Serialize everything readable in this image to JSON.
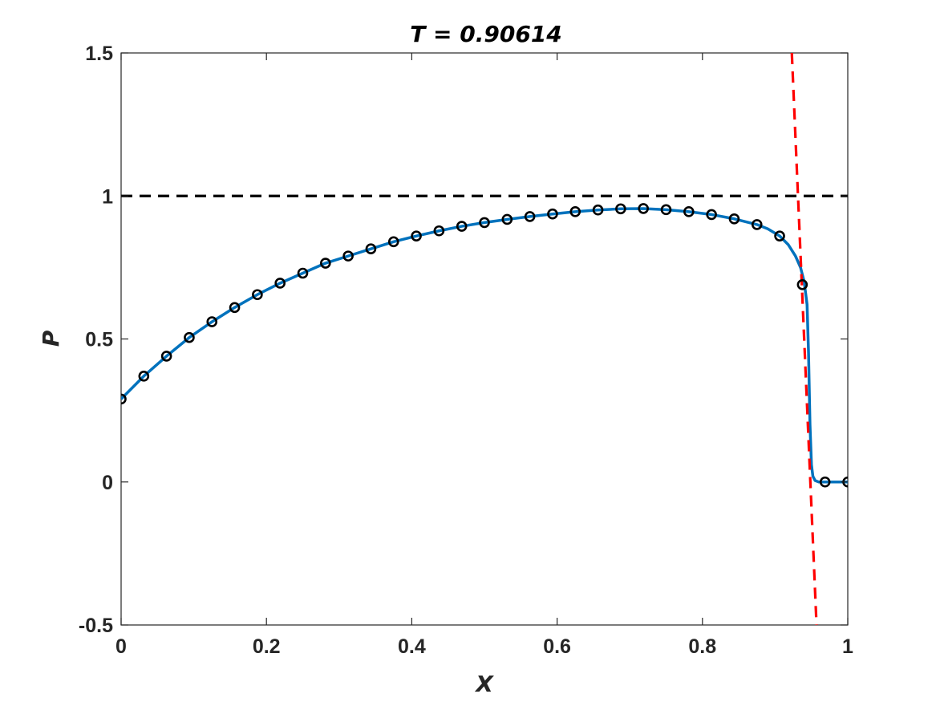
{
  "chart_data": {
    "type": "line",
    "title": "T = 0.90614",
    "xlabel": "X",
    "ylabel": "P",
    "xlim": [
      0,
      1
    ],
    "ylim": [
      -0.5,
      1.5
    ],
    "xticks": [
      "0",
      "0.2",
      "0.4",
      "0.6",
      "0.8",
      "1"
    ],
    "xtick_values": [
      0,
      0.2,
      0.4,
      0.6,
      0.8,
      1
    ],
    "yticks": [
      "-0.5",
      "0",
      "0.5",
      "1",
      "1.5"
    ],
    "ytick_values": [
      -0.5,
      0,
      0.5,
      1,
      1.5
    ],
    "grid": false,
    "legend": "none",
    "series": [
      {
        "style": "solid",
        "color": "#0072BD",
        "x": [
          0,
          0.03125,
          0.0625,
          0.09375,
          0.125,
          0.15625,
          0.1875,
          0.21875,
          0.25,
          0.28125,
          0.3125,
          0.34375,
          0.375,
          0.40625,
          0.4375,
          0.46875,
          0.5,
          0.53125,
          0.5625,
          0.59375,
          0.625,
          0.65625,
          0.6875,
          0.71875,
          0.75,
          0.78125,
          0.8125,
          0.84375,
          0.875,
          0.89,
          0.90625,
          0.918,
          0.928,
          0.935,
          0.94,
          0.944,
          0.946,
          0.948,
          0.95,
          0.952,
          0.955,
          0.96,
          0.97,
          1.0
        ],
        "y": [
          0.29,
          0.37,
          0.44,
          0.505,
          0.56,
          0.61,
          0.655,
          0.695,
          0.73,
          0.765,
          0.79,
          0.815,
          0.84,
          0.86,
          0.878,
          0.894,
          0.907,
          0.918,
          0.928,
          0.937,
          0.945,
          0.951,
          0.955,
          0.956,
          0.952,
          0.945,
          0.935,
          0.92,
          0.9,
          0.885,
          0.86,
          0.83,
          0.79,
          0.75,
          0.7,
          0.62,
          0.45,
          0.2,
          0.06,
          0.02,
          0.005,
          0,
          0,
          0
        ]
      },
      {
        "style": "markers",
        "marker": "circle",
        "color": "#000000",
        "x": [
          0,
          0.03125,
          0.0625,
          0.09375,
          0.125,
          0.15625,
          0.1875,
          0.21875,
          0.25,
          0.28125,
          0.3125,
          0.34375,
          0.375,
          0.40625,
          0.4375,
          0.46875,
          0.5,
          0.53125,
          0.5625,
          0.59375,
          0.625,
          0.65625,
          0.6875,
          0.71875,
          0.75,
          0.78125,
          0.8125,
          0.84375,
          0.875,
          0.90625,
          0.9375,
          0.96875,
          1.0
        ],
        "y": [
          0.29,
          0.37,
          0.44,
          0.505,
          0.56,
          0.61,
          0.655,
          0.695,
          0.73,
          0.765,
          0.79,
          0.815,
          0.84,
          0.86,
          0.878,
          0.894,
          0.907,
          0.918,
          0.928,
          0.937,
          0.945,
          0.951,
          0.955,
          0.956,
          0.952,
          0.945,
          0.935,
          0.92,
          0.9,
          0.86,
          0.69,
          0,
          0
        ]
      },
      {
        "style": "dashed",
        "color": "#000000",
        "x": [
          0,
          1
        ],
        "y": [
          1,
          1
        ]
      },
      {
        "style": "dashed",
        "color": "#FF0000",
        "x": [
          0.923,
          0.957
        ],
        "y": [
          1.5,
          -0.5
        ]
      }
    ]
  }
}
